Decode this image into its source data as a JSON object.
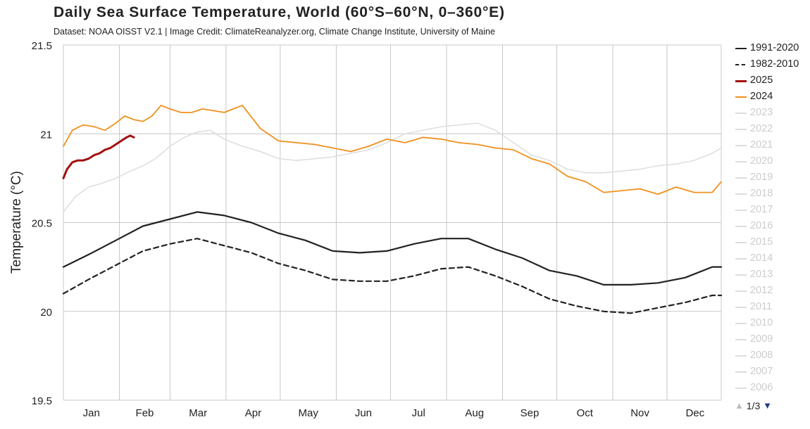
{
  "title": "Daily Sea Surface Temperature, World (60°S–60°N, 0–360°E)",
  "subtitle": "Dataset: NOAA OISST V2.1 | Image Credit: ClimateReanalyzer.org, Climate Change Institute, University of Maine",
  "pager": {
    "text": "1/3",
    "up_icon": "triangle-up-icon",
    "down_icon": "triangle-down-icon",
    "up_color": "#bbbbbb",
    "down_color": "#1f3c91"
  },
  "chart_data": {
    "type": "line",
    "title": "Daily Sea Surface Temperature, World (60°S–60°N, 0–360°E)",
    "ylabel": "Temperature (°C)",
    "xlabel": "",
    "ylim": [
      19.5,
      21.5
    ],
    "yticks": [
      "19.5",
      "20",
      "20.5",
      "21",
      "21.5"
    ],
    "ytick_values": [
      19.5,
      20,
      20.5,
      21,
      21.5
    ],
    "xlim": [
      1,
      365
    ],
    "xtick_labels": [
      "Jan",
      "Feb",
      "Mar",
      "Apr",
      "May",
      "Jun",
      "Jul",
      "Aug",
      "Sep",
      "Oct",
      "Nov",
      "Dec"
    ],
    "month_start_days": [
      1,
      32,
      60,
      91,
      121,
      152,
      182,
      213,
      244,
      274,
      305,
      335
    ],
    "grid": true,
    "legend_position": "right",
    "series": [
      {
        "name": "1991-2020",
        "color": "#222222",
        "style": "solid",
        "width": 2.2,
        "x": [
          1,
          15,
          30,
          45,
          60,
          75,
          90,
          105,
          120,
          135,
          150,
          165,
          180,
          195,
          210,
          225,
          240,
          255,
          270,
          285,
          300,
          315,
          330,
          345,
          360,
          365
        ],
        "y": [
          20.25,
          20.32,
          20.4,
          20.48,
          20.52,
          20.56,
          20.54,
          20.5,
          20.44,
          20.4,
          20.34,
          20.33,
          20.34,
          20.38,
          20.41,
          20.41,
          20.35,
          20.3,
          20.23,
          20.2,
          20.15,
          20.15,
          20.16,
          20.19,
          20.25,
          20.25
        ]
      },
      {
        "name": "1982-2010",
        "color": "#222222",
        "style": "dashed",
        "width": 2.2,
        "x": [
          1,
          15,
          30,
          45,
          60,
          75,
          90,
          105,
          120,
          135,
          150,
          165,
          180,
          195,
          210,
          225,
          240,
          255,
          270,
          285,
          300,
          315,
          330,
          345,
          360,
          365
        ],
        "y": [
          20.1,
          20.18,
          20.26,
          20.34,
          20.38,
          20.41,
          20.37,
          20.33,
          20.27,
          20.23,
          20.18,
          20.17,
          20.17,
          20.2,
          20.24,
          20.25,
          20.2,
          20.14,
          20.07,
          20.03,
          20.0,
          19.99,
          20.02,
          20.05,
          20.09,
          20.09
        ]
      },
      {
        "name": "2025",
        "color": "#a30d0d",
        "style": "solid",
        "width": 3,
        "x": [
          1,
          3,
          6,
          9,
          12,
          15,
          18,
          21,
          24,
          27,
          30,
          33,
          36,
          38,
          40
        ],
        "y": [
          20.75,
          20.8,
          20.84,
          20.85,
          20.85,
          20.86,
          20.88,
          20.89,
          20.91,
          20.92,
          20.94,
          20.96,
          20.98,
          20.99,
          20.98
        ]
      },
      {
        "name": "2024",
        "color": "#f0901e",
        "style": "solid",
        "width": 1.8,
        "x": [
          1,
          6,
          12,
          18,
          24,
          30,
          35,
          40,
          45,
          50,
          55,
          60,
          66,
          72,
          78,
          84,
          90,
          95,
          100,
          110,
          120,
          130,
          140,
          150,
          160,
          170,
          180,
          190,
          200,
          210,
          220,
          230,
          240,
          250,
          260,
          270,
          280,
          290,
          300,
          310,
          320,
          330,
          340,
          350,
          360,
          365
        ],
        "y": [
          20.93,
          21.02,
          21.05,
          21.04,
          21.02,
          21.06,
          21.1,
          21.08,
          21.07,
          21.1,
          21.16,
          21.14,
          21.12,
          21.12,
          21.14,
          21.13,
          21.12,
          21.14,
          21.16,
          21.03,
          20.96,
          20.95,
          20.94,
          20.92,
          20.9,
          20.93,
          20.97,
          20.95,
          20.98,
          20.97,
          20.95,
          20.94,
          20.92,
          20.91,
          20.86,
          20.83,
          20.76,
          20.73,
          20.67,
          20.68,
          20.69,
          20.66,
          20.7,
          20.67,
          20.67,
          20.73
        ]
      },
      {
        "name": "2023",
        "color": "#dddddd",
        "style": "solid",
        "width": 1.5,
        "x": [
          1,
          8,
          15,
          22,
          30,
          38,
          45,
          52,
          60,
          68,
          75,
          82,
          90,
          100,
          110,
          120,
          130,
          140,
          150,
          160,
          170,
          180,
          190,
          200,
          210,
          220,
          230,
          240,
          250,
          260,
          270,
          280,
          290,
          300,
          310,
          320,
          330,
          340,
          350,
          360,
          365
        ],
        "y": [
          20.56,
          20.65,
          20.7,
          20.72,
          20.75,
          20.79,
          20.82,
          20.86,
          20.93,
          20.98,
          21.01,
          21.02,
          20.97,
          20.93,
          20.9,
          20.86,
          20.85,
          20.86,
          20.87,
          20.89,
          20.91,
          20.95,
          21.0,
          21.02,
          21.04,
          21.05,
          21.06,
          21.02,
          20.95,
          20.88,
          20.85,
          20.8,
          20.78,
          20.78,
          20.79,
          20.8,
          20.82,
          20.83,
          20.85,
          20.89,
          20.92
        ]
      },
      {
        "name": "2022",
        "color": "#dddddd",
        "style": "solid",
        "width": 1.5,
        "x": [],
        "y": []
      },
      {
        "name": "2021",
        "color": "#dddddd",
        "style": "solid",
        "width": 1.5,
        "x": [],
        "y": []
      },
      {
        "name": "2020",
        "color": "#dddddd",
        "style": "solid",
        "width": 1.5,
        "x": [],
        "y": []
      },
      {
        "name": "2019",
        "color": "#dddddd",
        "style": "solid",
        "width": 1.5,
        "x": [],
        "y": []
      },
      {
        "name": "2018",
        "color": "#dddddd",
        "style": "solid",
        "width": 1.5,
        "x": [],
        "y": []
      },
      {
        "name": "2017",
        "color": "#dddddd",
        "style": "solid",
        "width": 1.5,
        "x": [],
        "y": []
      },
      {
        "name": "2016",
        "color": "#dddddd",
        "style": "solid",
        "width": 1.5,
        "x": [],
        "y": []
      },
      {
        "name": "2015",
        "color": "#dddddd",
        "style": "solid",
        "width": 1.5,
        "x": [],
        "y": []
      },
      {
        "name": "2014",
        "color": "#dddddd",
        "style": "solid",
        "width": 1.5,
        "x": [],
        "y": []
      },
      {
        "name": "2013",
        "color": "#dddddd",
        "style": "solid",
        "width": 1.5,
        "x": [],
        "y": []
      },
      {
        "name": "2012",
        "color": "#dddddd",
        "style": "solid",
        "width": 1.5,
        "x": [],
        "y": []
      },
      {
        "name": "2011",
        "color": "#dddddd",
        "style": "solid",
        "width": 1.5,
        "x": [],
        "y": []
      },
      {
        "name": "2010",
        "color": "#dddddd",
        "style": "solid",
        "width": 1.5,
        "x": [],
        "y": []
      },
      {
        "name": "2009",
        "color": "#dddddd",
        "style": "solid",
        "width": 1.5,
        "x": [],
        "y": []
      },
      {
        "name": "2008",
        "color": "#dddddd",
        "style": "solid",
        "width": 1.5,
        "x": [],
        "y": []
      },
      {
        "name": "2007",
        "color": "#dddddd",
        "style": "solid",
        "width": 1.5,
        "x": [],
        "y": []
      },
      {
        "name": "2006",
        "color": "#dddddd",
        "style": "solid",
        "width": 1.5,
        "x": [],
        "y": []
      }
    ]
  }
}
